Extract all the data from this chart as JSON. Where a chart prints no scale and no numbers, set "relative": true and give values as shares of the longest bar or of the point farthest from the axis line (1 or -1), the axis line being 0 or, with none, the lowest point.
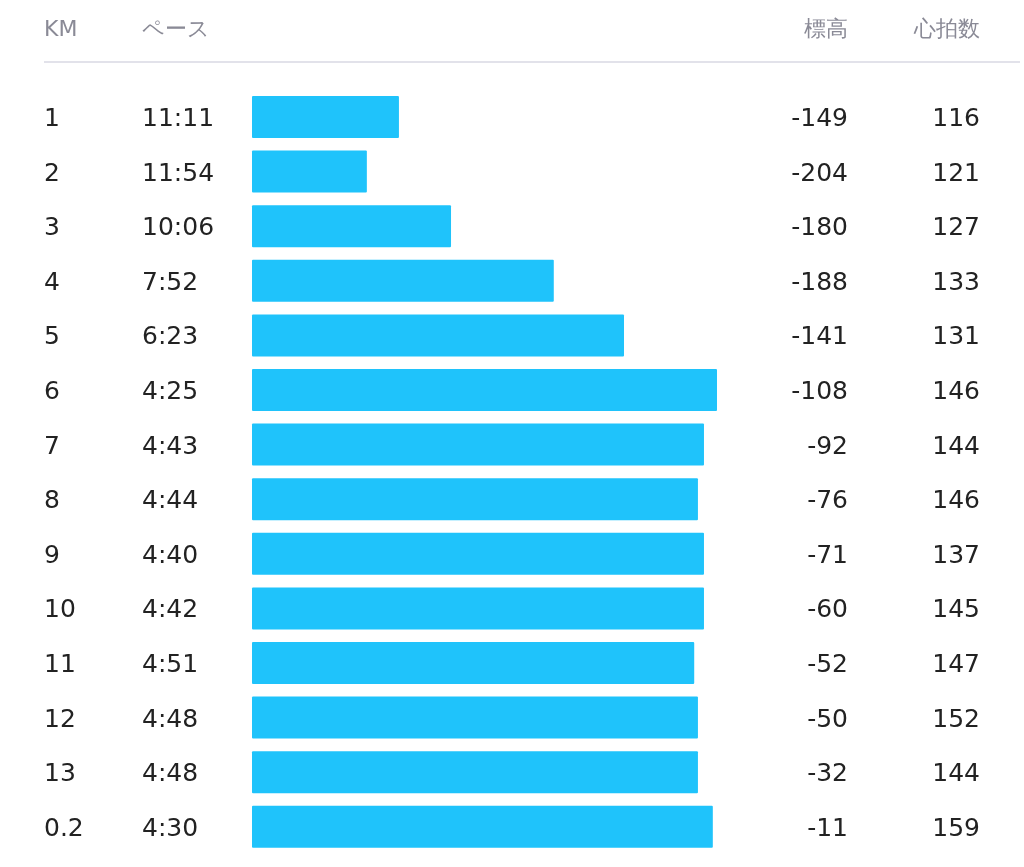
{
  "chart_data": [
    {
      "type": "bar",
      "orientation": "horizontal",
      "relative": true,
      "ylabel": "KM",
      "color": "#1fc3fb",
      "categories": [
        "1",
        "2",
        "3",
        "4",
        "5",
        "6",
        "7",
        "8",
        "9",
        "10",
        "11",
        "12",
        "13",
        "0.2"
      ],
      "values": [
        0.316,
        0.247,
        0.428,
        0.649,
        0.8,
        1,
        0.972,
        0.959,
        0.972,
        0.972,
        0.951,
        0.959,
        0.959,
        0.991
      ]
    },
    {
      "type": "other",
      "categories": [
        "ペース"
      ],
      "annotations": [
        "11:11",
        "11:54",
        "10:06",
        "7:52",
        "6:23",
        "4:25",
        "4:43",
        "4:44",
        "4:40",
        "4:42",
        "4:51",
        "4:48",
        "4:48",
        "4:30"
      ]
    },
    {
      "type": "other",
      "categories": [
        "標高",
        "心拍数"
      ],
      "annotations": [
        "-149",
        "116",
        "-204",
        "121",
        "-180",
        "127",
        "-188",
        "133",
        "-141",
        "131",
        "-108",
        "146",
        "-92",
        "144",
        "-76",
        "146",
        "-71",
        "137",
        "-60",
        "145",
        "-52",
        "147",
        "-50",
        "152",
        "-32",
        "144",
        "-11",
        "159"
      ]
    }
  ]
}
